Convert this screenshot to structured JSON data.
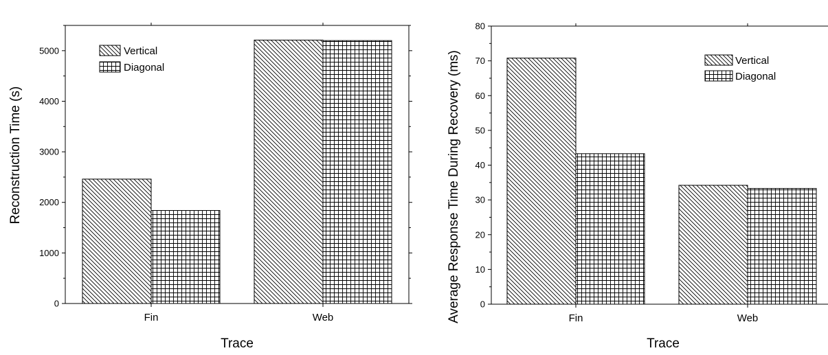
{
  "colors": {
    "background": "#ffffff",
    "ink": "#000000"
  },
  "chart_data": [
    {
      "type": "bar",
      "categories": [
        "Fin",
        "Web"
      ],
      "series": [
        {
          "name": "Vertical",
          "pattern": "diagonal-hatch",
          "values": [
            2460,
            5210
          ]
        },
        {
          "name": "Diagonal",
          "pattern": "grid-hatch",
          "values": [
            1840,
            5200
          ]
        }
      ],
      "xlabel": "Trace",
      "ylabel": "Reconstruction Time (s)",
      "ylim": [
        0,
        5500
      ],
      "yticks": [
        0,
        1000,
        2000,
        3000,
        4000,
        5000
      ],
      "grid": false,
      "legend_position": "top-left"
    },
    {
      "type": "bar",
      "categories": [
        "Fin",
        "Web"
      ],
      "series": [
        {
          "name": "Vertical",
          "pattern": "diagonal-hatch",
          "values": [
            70.8,
            34.2
          ]
        },
        {
          "name": "Diagonal",
          "pattern": "grid-hatch",
          "values": [
            43.3,
            33.3
          ]
        }
      ],
      "xlabel": "Trace",
      "ylabel": "Average Response Time During Recovery (ms)",
      "ylim": [
        0,
        80
      ],
      "yticks": [
        0,
        10,
        20,
        30,
        40,
        50,
        60,
        70,
        80
      ],
      "grid": false,
      "legend_position": "top-right"
    }
  ]
}
